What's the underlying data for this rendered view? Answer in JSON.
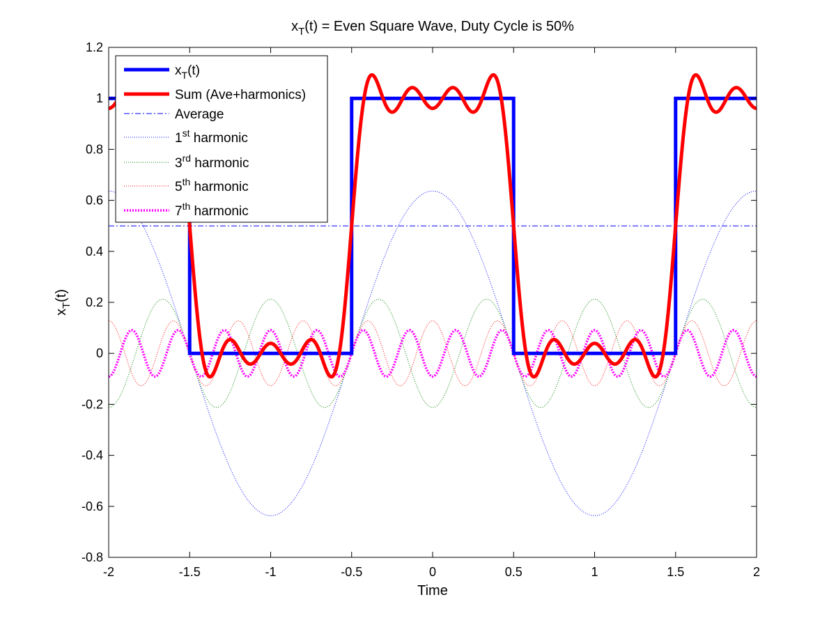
{
  "chart_data": {
    "type": "line",
    "title": {
      "main": "x",
      "sub": "T",
      "rest": "(t) = Even Square Wave, Duty Cycle is 50%"
    },
    "xlabel": "Time",
    "ylabel": {
      "main": "x",
      "sub": "T",
      "rest": "(t)"
    },
    "xlim": [
      -2,
      2
    ],
    "ylim": [
      -0.8,
      1.2
    ],
    "xticks": [
      -2,
      -1.5,
      -1,
      -0.5,
      0,
      0.5,
      1,
      1.5,
      2
    ],
    "xtick_labels": [
      "-2",
      "-1.5",
      "-1",
      "-0.5",
      "0",
      "0.5",
      "1",
      "1.5",
      "2"
    ],
    "yticks": [
      -0.8,
      -0.6,
      -0.4,
      -0.2,
      0,
      0.2,
      0.4,
      0.6,
      0.8,
      1,
      1.2
    ],
    "ytick_labels": [
      "-0.8",
      "-0.6",
      "-0.4",
      "-0.2",
      "0",
      "0.2",
      "0.4",
      "0.6",
      "0.8",
      "1",
      "1.2"
    ],
    "grid": false,
    "legend_position": "top-left",
    "period": 2,
    "series": [
      {
        "key": "square",
        "legend": {
          "main": "x",
          "sub": "T",
          "sup": "",
          "rest": "(t)"
        },
        "color": "#0000ff",
        "style": "solid-thick",
        "description": "square wave: 1 for |t| < 0.5 (mod 2), 0 otherwise",
        "points": [
          [
            -2,
            1
          ],
          [
            -1.5,
            1
          ],
          [
            -1.5,
            0
          ],
          [
            -0.5,
            0
          ],
          [
            -0.5,
            1
          ],
          [
            0.5,
            1
          ],
          [
            0.5,
            0
          ],
          [
            1.5,
            0
          ],
          [
            1.5,
            1
          ],
          [
            2,
            1
          ]
        ]
      },
      {
        "key": "sum",
        "legend": {
          "main": "Sum (Ave+harmonics)",
          "sub": "",
          "sup": "",
          "rest": ""
        },
        "color": "#ff0000",
        "style": "solid-thick",
        "components": [
          "average",
          "h1",
          "h3",
          "h5",
          "h7"
        ]
      },
      {
        "key": "average",
        "legend": {
          "main": "Average",
          "sub": "",
          "sup": "",
          "rest": ""
        },
        "color": "#0000ff",
        "style": "dashdot",
        "constant": 0.5
      },
      {
        "key": "h1",
        "legend": {
          "main": "1",
          "sub": "",
          "sup": "st",
          "rest": " harmonic"
        },
        "color": "#0000ff",
        "style": "dotted",
        "harmonic": 1,
        "amplitude": 0.6366
      },
      {
        "key": "h3",
        "legend": {
          "main": "3",
          "sub": "",
          "sup": "rd",
          "rest": " harmonic"
        },
        "color": "#008000",
        "style": "dotted",
        "harmonic": 3,
        "amplitude": -0.2122
      },
      {
        "key": "h5",
        "legend": {
          "main": "5",
          "sub": "",
          "sup": "th",
          "rest": " harmonic"
        },
        "color": "#ff0000",
        "style": "dotted",
        "harmonic": 5,
        "amplitude": 0.1273
      },
      {
        "key": "h7",
        "legend": {
          "main": "7",
          "sub": "",
          "sup": "th",
          "rest": " harmonic"
        },
        "color": "#ff00ff",
        "style": "dotted-thick",
        "harmonic": 7,
        "amplitude": -0.0909
      }
    ]
  }
}
